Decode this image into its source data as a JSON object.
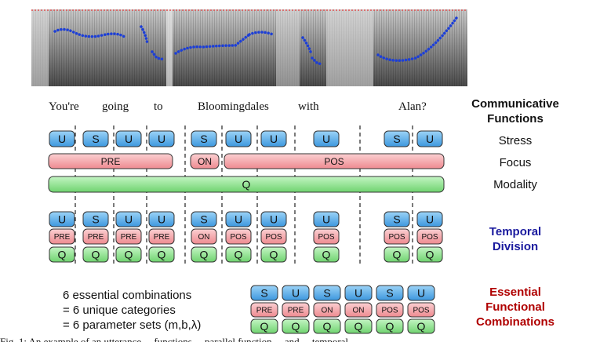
{
  "words": [
    "You're",
    "going",
    "to",
    "Bloomingdales",
    "with",
    "Alan?"
  ],
  "row_labels": {
    "communicative_functions": [
      "Communicative",
      "Functions"
    ],
    "stress": "Stress",
    "focus": "Focus",
    "modality": "Modality",
    "temporal_division": [
      "Temporal",
      "Division"
    ],
    "essential_functional_combinations": [
      "Essential",
      "Functional",
      "Combinations"
    ]
  },
  "stress_units": [
    "U",
    "S",
    "U",
    "U",
    "S",
    "U",
    "U",
    "U",
    "S",
    "U"
  ],
  "focus_segments": [
    "PRE",
    "ON",
    "POS"
  ],
  "modality_segments": [
    "Q"
  ],
  "temporal_units": [
    {
      "stress": "U",
      "focus": "PRE",
      "modality": "Q"
    },
    {
      "stress": "S",
      "focus": "PRE",
      "modality": "Q"
    },
    {
      "stress": "U",
      "focus": "PRE",
      "modality": "Q"
    },
    {
      "stress": "U",
      "focus": "PRE",
      "modality": "Q"
    },
    {
      "stress": "S",
      "focus": "ON",
      "modality": "Q"
    },
    {
      "stress": "U",
      "focus": "POS",
      "modality": "Q"
    },
    {
      "stress": "U",
      "focus": "POS",
      "modality": "Q"
    },
    {
      "stress": "U",
      "focus": "POS",
      "modality": "Q"
    },
    {
      "stress": "S",
      "focus": "POS",
      "modality": "Q"
    },
    {
      "stress": "U",
      "focus": "POS",
      "modality": "Q"
    }
  ],
  "essential_combinations": [
    {
      "stress": "S",
      "focus": "PRE",
      "modality": "Q"
    },
    {
      "stress": "U",
      "focus": "PRE",
      "modality": "Q"
    },
    {
      "stress": "S",
      "focus": "ON",
      "modality": "Q"
    },
    {
      "stress": "U",
      "focus": "ON",
      "modality": "Q"
    },
    {
      "stress": "S",
      "focus": "POS",
      "modality": "Q"
    },
    {
      "stress": "U",
      "focus": "POS",
      "modality": "Q"
    }
  ],
  "notes": [
    "6 essential combinations",
    "= 6 unique categories",
    "= 6 parameter sets (m,b,λ)"
  ],
  "caption": "Fig. 1: An example of an utterance ... functions ... parallel function ... and ... temporal ...",
  "colors": {
    "blue_fill": "#5aaee8",
    "red_fill": "#f4a3a8",
    "green_fill": "#8fe38f",
    "label_blue": "#1a1a9e",
    "label_red": "#b00000",
    "pitch_contour": "#1d3fd6"
  }
}
